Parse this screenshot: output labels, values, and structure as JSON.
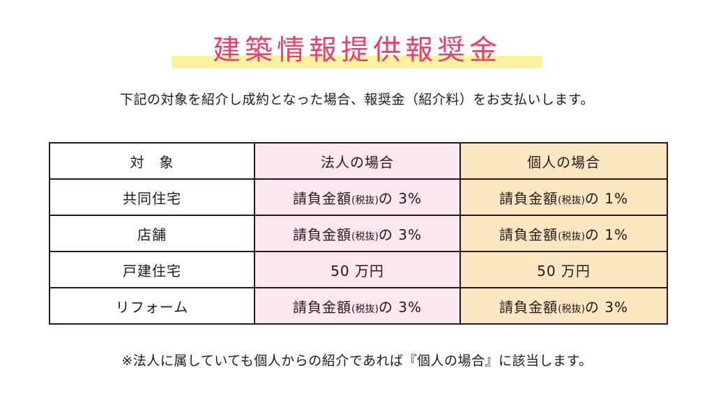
{
  "title": "建築情報提供報奨金",
  "lead": "下記の対象を紹介し成約となった場合、報奨金（紹介料）をお支払いします。",
  "colors": {
    "title": "#e73f6b",
    "title_highlight": "#fbf3a0",
    "corporate_column": "#fce6f0",
    "individual_column": "#fde7c3",
    "border": "#231815"
  },
  "table": {
    "headers": {
      "target": "対　象",
      "corporate": "法人の場合",
      "individual": "個人の場合"
    },
    "rows": [
      {
        "target": "共同住宅",
        "corporate": {
          "prefix": "請負金額",
          "tax": "(税抜)",
          "suffix": "の 3%"
        },
        "individual": {
          "prefix": "請負金額",
          "tax": "(税抜)",
          "suffix": "の 1%"
        }
      },
      {
        "target": "店舗",
        "corporate": {
          "prefix": "請負金額",
          "tax": "(税抜)",
          "suffix": "の 3%"
        },
        "individual": {
          "prefix": "請負金額",
          "tax": "(税抜)",
          "suffix": "の 1%"
        }
      },
      {
        "target": "戸建住宅",
        "corporate": {
          "prefix": "50 万円",
          "tax": "",
          "suffix": ""
        },
        "individual": {
          "prefix": "50 万円",
          "tax": "",
          "suffix": ""
        }
      },
      {
        "target": "リフォーム",
        "corporate": {
          "prefix": "請負金額",
          "tax": "(税抜)",
          "suffix": "の 3%"
        },
        "individual": {
          "prefix": "請負金額",
          "tax": "(税抜)",
          "suffix": "の 3%"
        }
      }
    ]
  },
  "note": "※法人に属していても個人からの紹介であれば『個人の場合』に該当します。"
}
